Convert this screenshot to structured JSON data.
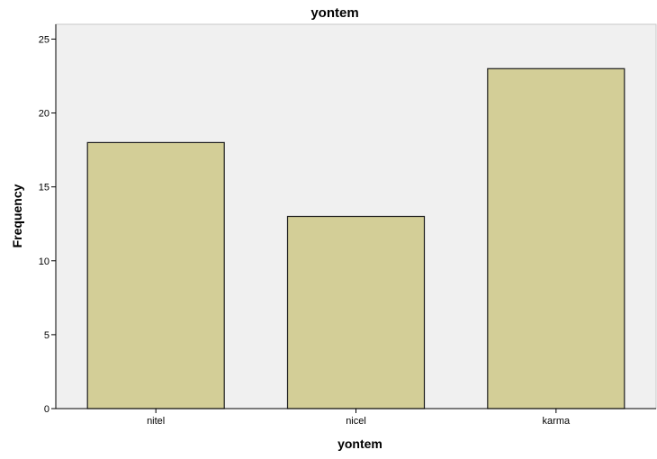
{
  "chart_data": {
    "type": "bar",
    "title": "yontem",
    "xlabel": "yontem",
    "ylabel": "Frequency",
    "categories": [
      "nitel",
      "nicel",
      "karma"
    ],
    "values": [
      18,
      13,
      23
    ],
    "ylim": [
      0,
      26
    ],
    "yticks": [
      "0",
      "5",
      "10",
      "15",
      "20",
      "25"
    ],
    "grid": false,
    "legend": "none"
  },
  "colors": {
    "plot_background": "#f0f0f0",
    "bar_fill": "#d3ce97",
    "bar_stroke": "#1e1e1e",
    "axis": "#000000"
  }
}
